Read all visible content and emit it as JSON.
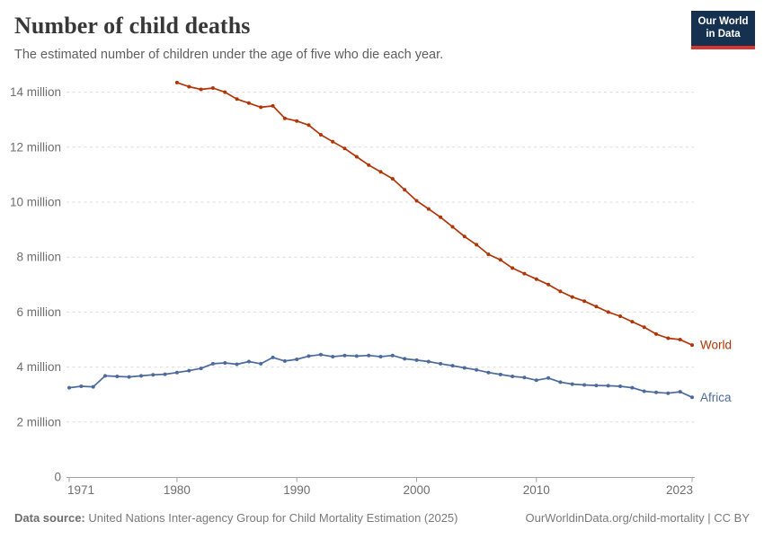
{
  "header": {
    "title": "Number of child deaths",
    "subtitle": "The estimated number of children under the age of five who die each year.",
    "logo": {
      "line1": "Our World",
      "line2": "in Data",
      "bg_color": "#16304f",
      "accent_color": "#d9352f"
    }
  },
  "footer": {
    "source_label": "Data source:",
    "source_text": " United Nations Inter-agency Group for Child Mortality Estimation (2025)",
    "attribution": "OurWorldinData.org/child-mortality | CC BY"
  },
  "chart_data": {
    "type": "line",
    "title": "Number of child deaths",
    "xlabel": "",
    "ylabel": "",
    "unit": "million",
    "grid": true,
    "legend_position": "end-of-line-labels",
    "xlim": [
      1971,
      2023
    ],
    "ylim": [
      0,
      14.8
    ],
    "xticks": [
      1971,
      1980,
      1990,
      2000,
      2010,
      2023
    ],
    "yticks": [
      {
        "value": 0,
        "label": "0"
      },
      {
        "value": 2,
        "label": "2 million"
      },
      {
        "value": 4,
        "label": "4 million"
      },
      {
        "value": 6,
        "label": "6 million"
      },
      {
        "value": 8,
        "label": "8 million"
      },
      {
        "value": 10,
        "label": "10 million"
      },
      {
        "value": 12,
        "label": "12 million"
      },
      {
        "value": 14,
        "label": "14 million"
      }
    ],
    "series": [
      {
        "name": "World",
        "color": "#b13507",
        "years": [
          1980,
          1981,
          1982,
          1983,
          1984,
          1985,
          1986,
          1987,
          1988,
          1989,
          1990,
          1991,
          1992,
          1993,
          1994,
          1995,
          1996,
          1997,
          1998,
          1999,
          2000,
          2001,
          2002,
          2003,
          2004,
          2005,
          2006,
          2007,
          2008,
          2009,
          2010,
          2011,
          2012,
          2013,
          2014,
          2015,
          2016,
          2017,
          2018,
          2019,
          2020,
          2021,
          2022,
          2023
        ],
        "values_millions": [
          14.35,
          14.2,
          14.1,
          14.15,
          14.0,
          13.75,
          13.6,
          13.45,
          13.5,
          13.05,
          12.95,
          12.8,
          12.45,
          12.2,
          11.95,
          11.65,
          11.35,
          11.1,
          10.85,
          10.45,
          10.05,
          9.75,
          9.45,
          9.1,
          8.75,
          8.45,
          8.1,
          7.9,
          7.6,
          7.4,
          7.2,
          7.0,
          6.75,
          6.55,
          6.4,
          6.2,
          6.0,
          5.85,
          5.65,
          5.45,
          5.2,
          5.05,
          5.0,
          4.8
        ]
      },
      {
        "name": "Africa",
        "color": "#4c6a9c",
        "years": [
          1971,
          1972,
          1973,
          1974,
          1975,
          1976,
          1977,
          1978,
          1979,
          1980,
          1981,
          1982,
          1983,
          1984,
          1985,
          1986,
          1987,
          1988,
          1989,
          1990,
          1991,
          1992,
          1993,
          1994,
          1995,
          1996,
          1997,
          1998,
          1999,
          2000,
          2001,
          2002,
          2003,
          2004,
          2005,
          2006,
          2007,
          2008,
          2009,
          2010,
          2011,
          2012,
          2013,
          2014,
          2015,
          2016,
          2017,
          2018,
          2019,
          2020,
          2021,
          2022,
          2023
        ],
        "values_millions": [
          3.25,
          3.3,
          3.28,
          3.68,
          3.66,
          3.64,
          3.68,
          3.72,
          3.74,
          3.8,
          3.87,
          3.95,
          4.12,
          4.15,
          4.1,
          4.2,
          4.12,
          4.35,
          4.22,
          4.28,
          4.4,
          4.45,
          4.38,
          4.42,
          4.4,
          4.42,
          4.38,
          4.42,
          4.3,
          4.25,
          4.2,
          4.12,
          4.05,
          3.97,
          3.9,
          3.8,
          3.73,
          3.66,
          3.62,
          3.52,
          3.6,
          3.45,
          3.38,
          3.35,
          3.33,
          3.32,
          3.3,
          3.25,
          3.12,
          3.08,
          3.05,
          3.1,
          2.9
        ]
      }
    ],
    "style": {
      "gridline_color": "#dcdcdc",
      "axis_color": "#a3a3a3",
      "tick_label_color": "#6e6e6e"
    }
  }
}
